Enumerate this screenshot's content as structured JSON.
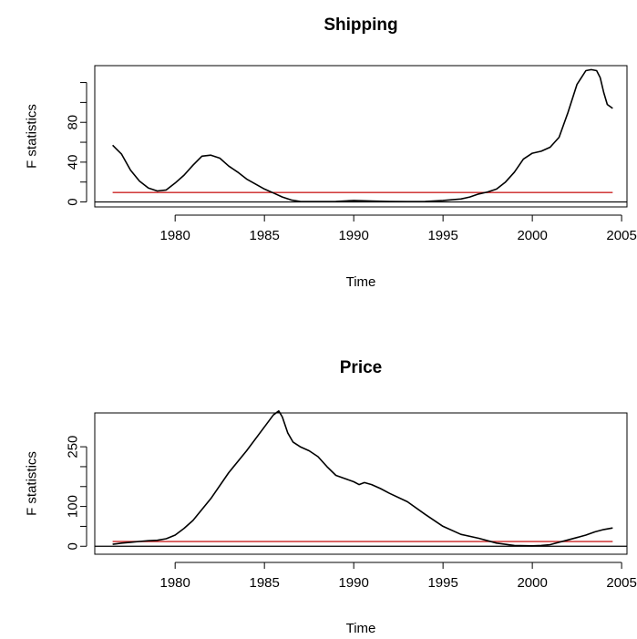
{
  "chart_data": [
    {
      "type": "line",
      "title": "Shipping",
      "xlabel": "Time",
      "ylabel": "F statistics",
      "xlim": [
        1975.5,
        2005.3
      ],
      "ylim": [
        -5,
        137
      ],
      "x_ticks": [
        1980,
        1985,
        1990,
        1995,
        2000,
        2005
      ],
      "y_ticks": [
        0,
        40,
        80
      ],
      "y_minor_ticks": [
        20,
        60,
        100,
        120
      ],
      "critical_value": 9.5,
      "series": [
        {
          "role": "F statistics",
          "color": "#000000",
          "x": [
            1976.5,
            1977.0,
            1977.5,
            1978.0,
            1978.5,
            1979.0,
            1979.5,
            1980.0,
            1980.5,
            1981.0,
            1981.5,
            1982.0,
            1982.5,
            1983.0,
            1983.5,
            1984.0,
            1984.5,
            1985.0,
            1985.5,
            1986.0,
            1986.5,
            1987.0,
            1988.0,
            1989.0,
            1990.0,
            1991.0,
            1992.0,
            1993.0,
            1994.0,
            1995.0,
            1996.0,
            1996.5,
            1997.0,
            1997.5,
            1998.0,
            1998.5,
            1999.0,
            1999.5,
            2000.0,
            2000.5,
            2001.0,
            2001.5,
            2002.0,
            2002.5,
            2003.0,
            2003.3,
            2003.6,
            2003.8,
            2004.0,
            2004.2,
            2004.5
          ],
          "y": [
            57,
            48,
            32,
            21,
            14,
            11,
            12,
            19,
            27,
            37,
            46,
            47,
            44,
            36,
            30,
            23,
            18,
            13,
            9,
            5,
            2,
            0.5,
            0.3,
            0.5,
            1.5,
            1.0,
            0.5,
            0.3,
            0.5,
            1.5,
            3,
            5,
            8,
            10,
            13,
            20,
            30,
            43,
            49,
            51,
            55,
            65,
            90,
            118,
            132,
            133,
            132,
            125,
            110,
            98,
            94
          ]
        }
      ]
    },
    {
      "type": "line",
      "title": "Price",
      "xlabel": "Time",
      "ylabel": "F statistics",
      "xlim": [
        1975.5,
        2005.3
      ],
      "ylim": [
        -20,
        335
      ],
      "x_ticks": [
        1980,
        1985,
        1990,
        1995,
        2000,
        2005
      ],
      "y_ticks": [
        0,
        100,
        250
      ],
      "y_minor_ticks": [
        50,
        150,
        200
      ],
      "critical_value": 12,
      "series": [
        {
          "role": "F statistics",
          "color": "#000000",
          "x": [
            1976.5,
            1977.0,
            1977.5,
            1978.0,
            1978.5,
            1979.0,
            1979.5,
            1980.0,
            1980.5,
            1981.0,
            1982.0,
            1983.0,
            1984.0,
            1985.0,
            1985.5,
            1985.8,
            1986.0,
            1986.3,
            1986.6,
            1987.0,
            1987.5,
            1988.0,
            1988.5,
            1989.0,
            1989.5,
            1990.0,
            1990.3,
            1990.6,
            1991.0,
            1991.5,
            1992.0,
            1993.0,
            1994.0,
            1995.0,
            1996.0,
            1997.0,
            1998.0,
            1999.0,
            2000.0,
            2000.5,
            2001.0,
            2001.5,
            2002.0,
            2002.5,
            2003.0,
            2003.5,
            2004.0,
            2004.5
          ],
          "y": [
            5,
            8,
            10,
            12,
            14,
            15,
            19,
            28,
            45,
            65,
            120,
            185,
            240,
            300,
            330,
            340,
            325,
            285,
            262,
            250,
            240,
            225,
            200,
            178,
            170,
            162,
            155,
            160,
            155,
            145,
            133,
            112,
            80,
            50,
            30,
            20,
            8,
            2,
            1,
            2,
            4,
            10,
            16,
            22,
            28,
            36,
            42,
            46
          ]
        }
      ]
    }
  ]
}
